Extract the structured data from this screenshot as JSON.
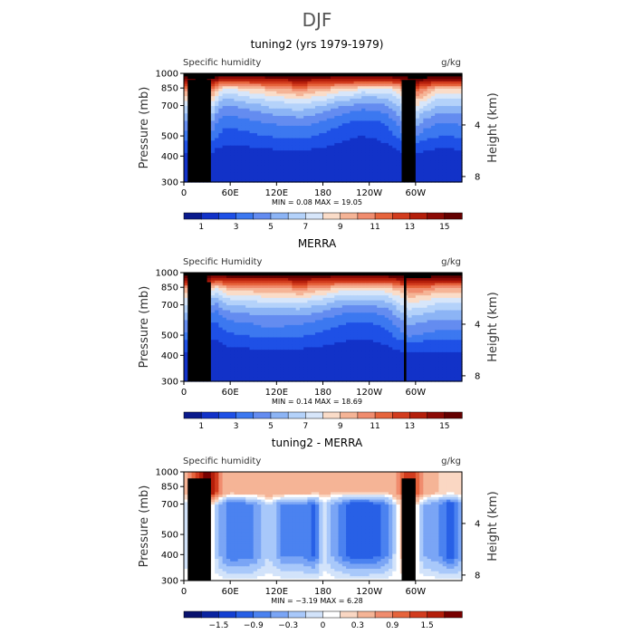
{
  "page_title": "DJF",
  "panels": [
    {
      "title": "tuning2 (yrs 1979-1979)",
      "variable": "Specific humidity",
      "units": "g/kg",
      "ylabel": "Pressure (mb)",
      "ylabel_right": "Height (km)",
      "stats": "MIN =     0.08   MAX =   19.05",
      "colorbar_ticks": [
        "1",
        "3",
        "5",
        "7",
        "9",
        "11",
        "13",
        "15"
      ]
    },
    {
      "title": "MERRA",
      "variable": "Specific Humidity",
      "units": "g/kg",
      "ylabel": "Pressure (mb)",
      "ylabel_right": "Height (km)",
      "stats": "MIN =     0.14   MAX =   18.69",
      "colorbar_ticks": [
        "1",
        "3",
        "5",
        "7",
        "9",
        "11",
        "13",
        "15"
      ]
    },
    {
      "title": "tuning2 - MERRA",
      "variable": "Specific humidity",
      "units": "g/kg",
      "ylabel": "Pressure (mb)",
      "ylabel_right": "Height (km)",
      "stats": "MIN =   −3.19   MAX =    6.28",
      "colorbar_ticks": [
        "−1.5",
        "−0.9",
        "−0.3",
        "0",
        "0.3",
        "0.9",
        "1.5"
      ]
    }
  ],
  "colors": {
    "seq_palette": [
      "#0a1a8c",
      "#1232c8",
      "#1e50e6",
      "#3c78f0",
      "#648cf0",
      "#8cb4f5",
      "#b4d2fa",
      "#d7e6fa",
      "#fadcc8",
      "#f5b496",
      "#f08c6e",
      "#e6643c",
      "#d23c1e",
      "#b41e0a",
      "#8c0a05",
      "#640000"
    ],
    "div_palette": [
      "#08126e",
      "#0a24a0",
      "#1440d2",
      "#2860e6",
      "#4b82f0",
      "#7aa5f5",
      "#a8c8fa",
      "#d2e3fa",
      "#ffffff",
      "#fad7c3",
      "#f5b496",
      "#f08c6e",
      "#e6643c",
      "#d23c1e",
      "#b41e0a",
      "#780000"
    ],
    "topography": "#000000"
  },
  "chart_data": [
    {
      "type": "heatmap",
      "title": "tuning2 (yrs 1979-1979)",
      "variable": "Specific humidity",
      "units": "g/kg",
      "x_ticks": [
        "0",
        "60E",
        "120E",
        "180",
        "120W",
        "60W"
      ],
      "x_tick_values": [
        0,
        60,
        120,
        180,
        240,
        300
      ],
      "xlim": [
        0,
        360
      ],
      "y_ticks": [
        300,
        400,
        500,
        700,
        850,
        1000
      ],
      "ylim": [
        1000,
        300
      ],
      "y_right_ticks": [
        4,
        8
      ],
      "y_scale": "log-pressure",
      "min": 0.08,
      "max": 19.05,
      "levels": [
        0.0,
        1.0,
        2.0,
        3.0,
        4.0,
        5.0,
        6.0,
        7.0,
        8.0,
        9.0,
        10.0,
        11.0,
        12.0,
        13.0,
        14.0,
        15.0
      ],
      "zonal_profile": {
        "lon": [
          0,
          10,
          20,
          30,
          40,
          50,
          60,
          90,
          100,
          110,
          130,
          150,
          170,
          180,
          200,
          215,
          230,
          250,
          265,
          280,
          290,
          300,
          310,
          330,
          345,
          360
        ],
        "surface_q": [
          17,
          17,
          17,
          17,
          17,
          16,
          16,
          16,
          16,
          16,
          16,
          16,
          16,
          16,
          16,
          16,
          16,
          16,
          16,
          17,
          17,
          17,
          17,
          17,
          17,
          17
        ],
        "q_850mb": [
          9,
          11,
          13,
          13,
          9,
          7,
          7,
          8,
          8,
          9,
          9,
          10,
          9,
          9,
          8,
          8,
          7,
          7,
          7,
          8,
          10,
          11,
          10,
          8,
          8,
          8
        ],
        "q_500mb": [
          2.5,
          3.0,
          3.5,
          3.8,
          2.2,
          1.6,
          1.5,
          1.8,
          2.0,
          2.0,
          2.2,
          2.2,
          2.0,
          1.8,
          1.4,
          1.1,
          1.0,
          1.1,
          1.5,
          2.5,
          3.5,
          3.2,
          2.5,
          2.0,
          2.0,
          2.2
        ]
      },
      "topography": [
        {
          "lon": [
            5,
            35
          ],
          "top_mb": 930
        },
        {
          "lon": [
            25,
            30
          ],
          "top_mb": 870
        },
        {
          "lon": [
            282,
            300
          ],
          "top_mb": 930
        }
      ]
    },
    {
      "type": "heatmap",
      "title": "MERRA",
      "variable": "Specific Humidity",
      "units": "g/kg",
      "x_ticks": [
        "0",
        "60E",
        "120E",
        "180",
        "120W",
        "60W"
      ],
      "x_tick_values": [
        0,
        60,
        120,
        180,
        240,
        300
      ],
      "xlim": [
        0,
        360
      ],
      "y_ticks": [
        300,
        400,
        500,
        700,
        850,
        1000
      ],
      "ylim": [
        1000,
        300
      ],
      "y_right_ticks": [
        4,
        8
      ],
      "y_scale": "log-pressure",
      "min": 0.14,
      "max": 18.69,
      "levels": [
        0.0,
        1.0,
        2.0,
        3.0,
        4.0,
        5.0,
        6.0,
        7.0,
        8.0,
        9.0,
        10.0,
        11.0,
        12.0,
        13.0,
        14.0,
        15.0
      ],
      "zonal_profile": {
        "lon": [
          0,
          10,
          20,
          30,
          40,
          50,
          60,
          90,
          100,
          110,
          130,
          150,
          170,
          180,
          200,
          215,
          230,
          250,
          265,
          280,
          290,
          300,
          310,
          330,
          345,
          360
        ],
        "surface_q": [
          17,
          17,
          17,
          17,
          16,
          16,
          16,
          16,
          16,
          16,
          16,
          16,
          16,
          16,
          16,
          16,
          16,
          16,
          16,
          17,
          17,
          17,
          17,
          17,
          17,
          17
        ],
        "q_850mb": [
          9,
          10,
          11,
          10,
          7,
          8,
          9,
          9,
          9,
          9,
          9,
          10,
          9,
          9,
          8,
          8,
          8,
          8,
          8,
          9,
          10,
          10,
          10,
          9,
          9,
          9
        ],
        "q_500mb": [
          2.6,
          3.0,
          2.8,
          1.8,
          1.0,
          1.6,
          1.8,
          2.1,
          2.3,
          2.3,
          2.3,
          2.1,
          1.9,
          1.7,
          1.4,
          1.2,
          1.2,
          1.3,
          1.7,
          2.6,
          3.2,
          3.0,
          2.8,
          2.6,
          2.6,
          2.6
        ]
      },
      "topography": [
        {
          "lon": [
            5,
            30
          ],
          "top_mb": 960
        },
        {
          "lon": [
            20,
            35
          ],
          "top_mb": 900
        },
        {
          "lon": [
            285,
            288
          ],
          "top_mb": 950
        }
      ]
    },
    {
      "type": "heatmap",
      "title": "tuning2 - MERRA",
      "variable": "Specific humidity",
      "units": "g/kg",
      "x_ticks": [
        "0",
        "60E",
        "120E",
        "180",
        "120W",
        "60W"
      ],
      "x_tick_values": [
        0,
        60,
        120,
        180,
        240,
        300
      ],
      "xlim": [
        0,
        360
      ],
      "y_ticks": [
        300,
        400,
        500,
        700,
        850,
        1000
      ],
      "ylim": [
        1000,
        300
      ],
      "y_right_ticks": [
        4,
        8
      ],
      "y_scale": "log-pressure",
      "min": -3.19,
      "max": 6.28,
      "levels": [
        -2.1,
        -1.8,
        -1.5,
        -1.2,
        -0.9,
        -0.6,
        -0.3,
        -0.1,
        0.1,
        0.3,
        0.6,
        0.9,
        1.2,
        1.5,
        1.8
      ],
      "zonal_profile": {
        "lon": [
          0,
          10,
          20,
          30,
          40,
          50,
          60,
          90,
          100,
          110,
          130,
          150,
          170,
          180,
          200,
          215,
          230,
          250,
          265,
          280,
          290,
          300,
          310,
          330,
          345,
          360
        ],
        "diff_lower": [
          0.3,
          0.9,
          1.6,
          2.0,
          1.5,
          0.6,
          0.4,
          0.5,
          0.5,
          0.6,
          0.5,
          0.5,
          0.4,
          0.4,
          0.3,
          0.3,
          0.3,
          0.3,
          0.3,
          0.8,
          1.5,
          1.2,
          0.6,
          0.3,
          0.2,
          0.3
        ],
        "diff_upper": [
          -0.4,
          0.2,
          0.5,
          0.6,
          -0.2,
          -0.8,
          -1.2,
          -1.0,
          -0.6,
          -0.3,
          -1.0,
          -0.9,
          -1.3,
          -0.2,
          -0.9,
          -1.4,
          -1.5,
          -1.3,
          -0.9,
          0.3,
          0.5,
          0.2,
          -0.6,
          -0.9,
          -1.5,
          -0.7
        ]
      },
      "topography": [
        {
          "lon": [
            5,
            35
          ],
          "top_mb": 930
        },
        {
          "lon": [
            25,
            30
          ],
          "top_mb": 870
        },
        {
          "lon": [
            282,
            300
          ],
          "top_mb": 930
        }
      ]
    }
  ]
}
